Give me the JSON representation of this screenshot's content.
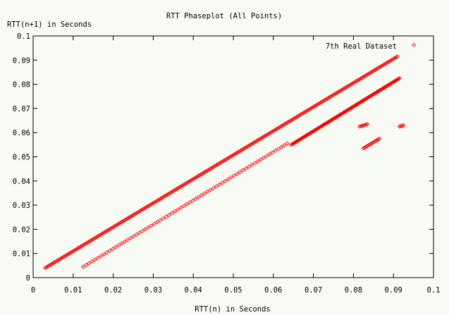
{
  "chart_data": {
    "type": "scatter",
    "title": "RTT Phaseplot (All Points)",
    "xlabel": "RTT(n) in Seconds",
    "ylabel": "RTT(n+1) in Seconds",
    "xlim": [
      0,
      0.1
    ],
    "ylim": [
      0,
      0.1
    ],
    "xticks": [
      "0",
      "0.01",
      "0.02",
      "0.03",
      "0.04",
      "0.05",
      "0.06",
      "0.07",
      "0.08",
      "0.09",
      "0.1"
    ],
    "yticks": [
      "0",
      "0.01",
      "0.02",
      "0.03",
      "0.04",
      "0.05",
      "0.06",
      "0.07",
      "0.08",
      "0.09",
      "0.1"
    ],
    "grid": false,
    "legend_position": "top-right",
    "colors": {
      "series": "#ff0000",
      "axes": "#000000",
      "background": "#f8fbf4"
    },
    "series": [
      {
        "name": "7th Real Dataset",
        "marker": "diamond",
        "segments": [
          {
            "x": [
              0.003,
              0.091
            ],
            "y": [
              0.004,
              0.0915
            ],
            "count": 260
          },
          {
            "x": [
              0.0645,
              0.0915
            ],
            "y": [
              0.055,
              0.0825
            ],
            "count": 130
          },
          {
            "x": [
              0.0125,
              0.0635
            ],
            "y": [
              0.0045,
              0.0555
            ],
            "count": 70
          },
          {
            "x": [
              0.0825,
              0.0865
            ],
            "y": [
              0.0535,
              0.0575
            ],
            "count": 14
          },
          {
            "x": [
              0.0815,
              0.0835
            ],
            "y": [
              0.0625,
              0.0635
            ],
            "count": 6
          },
          {
            "x": [
              0.0915,
              0.0925
            ],
            "y": [
              0.0625,
              0.063
            ],
            "count": 4
          }
        ],
        "legend_sample": {
          "x": 0.0951,
          "y": 0.0963
        }
      }
    ]
  }
}
